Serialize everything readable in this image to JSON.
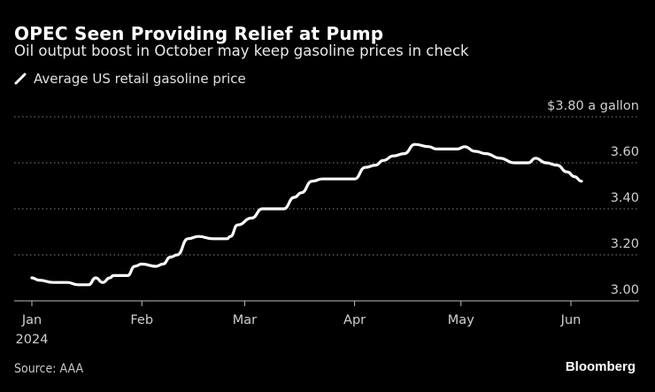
{
  "header": {
    "title": "OPEC Seen Providing Relief at Pump",
    "subtitle": "Oil output boost in October may keep gasoline prices in check"
  },
  "legend": {
    "label": "Average US retail gasoline price",
    "icon": "line-swatch-icon"
  },
  "footer": {
    "source": "Source: AAA",
    "brand": "Bloomberg"
  },
  "chart_data": {
    "type": "line",
    "title": "OPEC Seen Providing Relief at Pump",
    "subtitle": "Oil output boost in October may keep gasoline prices in check",
    "xlabel": "",
    "ylabel": "",
    "y_unit_label": "$3.80 a gallon",
    "ylim": [
      3.0,
      3.8
    ],
    "yticks": [
      3.0,
      3.2,
      3.4,
      3.6,
      3.8
    ],
    "ytick_labels": [
      "3.00",
      "3.20",
      "3.40",
      "3.60",
      "$3.80 a gallon"
    ],
    "xlim_days": [
      -5,
      170
    ],
    "xticks": [
      {
        "label": "Jan",
        "sublabel": "2024",
        "day": 0
      },
      {
        "label": "Feb",
        "day": 31
      },
      {
        "label": "Mar",
        "day": 60
      },
      {
        "label": "Apr",
        "day": 91
      },
      {
        "label": "May",
        "day": 121
      },
      {
        "label": "Jun",
        "day": 152
      }
    ],
    "grid": true,
    "legend_position": "top-left",
    "series": [
      {
        "name": "Average US retail gasoline price",
        "color": "#ffffff",
        "points": [
          [
            0,
            3.1
          ],
          [
            2,
            3.09
          ],
          [
            6,
            3.08
          ],
          [
            10,
            3.08
          ],
          [
            13,
            3.07
          ],
          [
            16,
            3.07
          ],
          [
            18,
            3.1
          ],
          [
            20,
            3.08
          ],
          [
            22,
            3.1
          ],
          [
            23,
            3.11
          ],
          [
            27,
            3.11
          ],
          [
            29,
            3.15
          ],
          [
            31,
            3.16
          ],
          [
            35,
            3.15
          ],
          [
            37,
            3.16
          ],
          [
            39,
            3.19
          ],
          [
            41,
            3.2
          ],
          [
            44,
            3.27
          ],
          [
            47,
            3.28
          ],
          [
            51,
            3.27
          ],
          [
            55,
            3.27
          ],
          [
            56,
            3.28
          ],
          [
            58,
            3.33
          ],
          [
            62,
            3.36
          ],
          [
            65,
            3.4
          ],
          [
            68,
            3.4
          ],
          [
            71,
            3.4
          ],
          [
            74,
            3.45
          ],
          [
            76,
            3.47
          ],
          [
            79,
            3.52
          ],
          [
            82,
            3.53
          ],
          [
            86,
            3.53
          ],
          [
            91,
            3.53
          ],
          [
            94,
            3.58
          ],
          [
            97,
            3.59
          ],
          [
            99,
            3.61
          ],
          [
            102,
            3.63
          ],
          [
            105,
            3.64
          ],
          [
            108,
            3.68
          ],
          [
            112,
            3.67
          ],
          [
            114,
            3.66
          ],
          [
            117,
            3.66
          ],
          [
            120,
            3.66
          ],
          [
            122,
            3.67
          ],
          [
            125,
            3.65
          ],
          [
            128,
            3.64
          ],
          [
            132,
            3.62
          ],
          [
            136,
            3.6
          ],
          [
            140,
            3.6
          ],
          [
            142,
            3.62
          ],
          [
            145,
            3.6
          ],
          [
            148,
            3.59
          ],
          [
            151,
            3.56
          ],
          [
            153,
            3.54
          ],
          [
            155,
            3.52
          ]
        ]
      }
    ]
  }
}
